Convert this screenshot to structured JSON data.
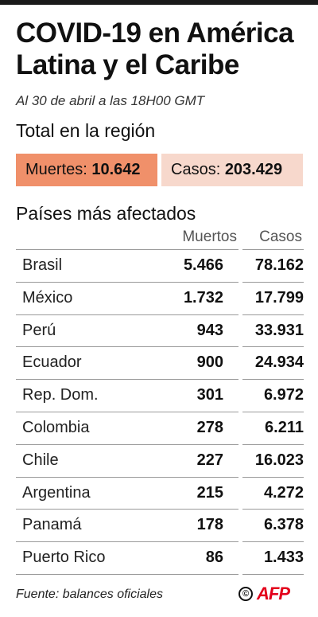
{
  "header": {
    "title_line1": "COVID-19 en América",
    "title_line2": "Latina y el Caribe",
    "subtitle": "Al 30 de abril a las 18H00 GMT"
  },
  "totals": {
    "heading": "Total en la región",
    "deaths_label": "Muertes:",
    "deaths_value": "10.642",
    "cases_label": "Casos:",
    "cases_value": "203.429"
  },
  "table": {
    "heading": "Países más afectados",
    "col_deaths": "Muertos",
    "col_cases": "Casos"
  },
  "footer": {
    "source": "Fuente: balances oficiales",
    "copyright_symbol": "©",
    "logo": "AFP"
  },
  "colors": {
    "deaths_badge": "#f0906a",
    "cases_badge": "#f7d8cc",
    "logo": "#e3001b"
  },
  "chart_data": {
    "type": "table",
    "title": "COVID-19 en América Latina y el Caribe",
    "subtitle": "Al 30 de abril a las 18H00 GMT",
    "totals": {
      "deaths": 10642,
      "cases": 203429
    },
    "columns": [
      "Muertos",
      "Casos"
    ],
    "rows": [
      {
        "country": "Brasil",
        "deaths": "5.466",
        "cases": "78.162"
      },
      {
        "country": "México",
        "deaths": "1.732",
        "cases": "17.799"
      },
      {
        "country": "Perú",
        "deaths": "943",
        "cases": "33.931"
      },
      {
        "country": "Ecuador",
        "deaths": "900",
        "cases": "24.934"
      },
      {
        "country": "Rep. Dom.",
        "deaths": "301",
        "cases": "6.972"
      },
      {
        "country": "Colombia",
        "deaths": "278",
        "cases": "6.211"
      },
      {
        "country": "Chile",
        "deaths": "227",
        "cases": "16.023"
      },
      {
        "country": "Argentina",
        "deaths": "215",
        "cases": "4.272"
      },
      {
        "country": "Panamá",
        "deaths": "178",
        "cases": "6.378"
      },
      {
        "country": "Puerto Rico",
        "deaths": "86",
        "cases": "1.433"
      }
    ]
  }
}
